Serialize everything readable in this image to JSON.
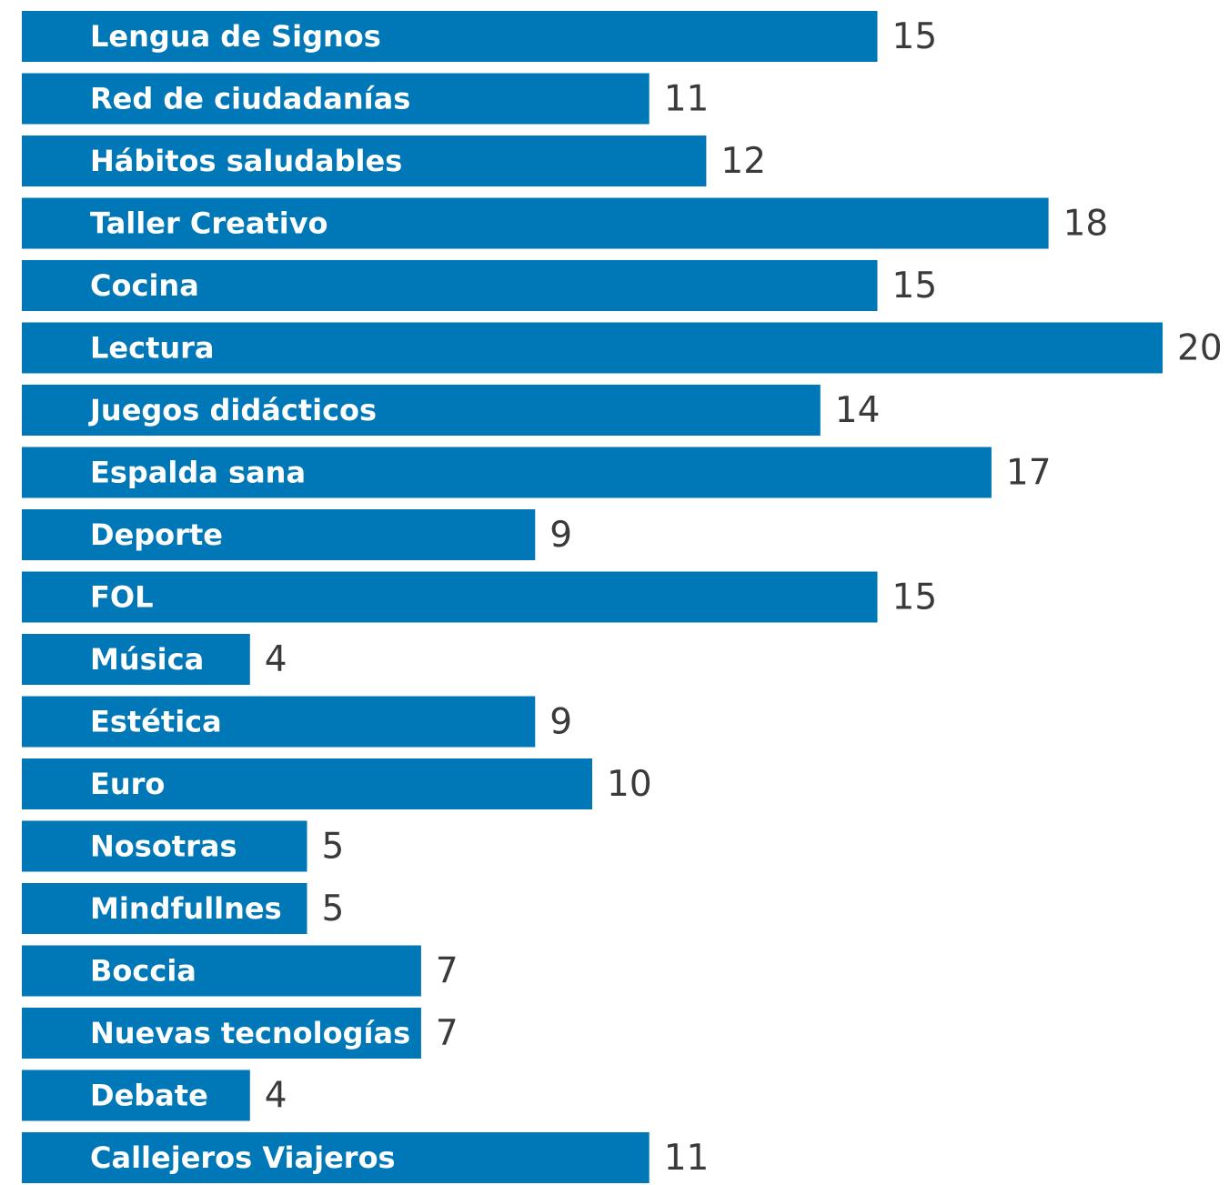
{
  "colors": {
    "bar": "#0077b6",
    "bar_label": "#ffffff",
    "value_label": "#3a3a3a",
    "background": "#ffffff"
  },
  "chart_data": {
    "type": "bar",
    "orientation": "horizontal",
    "title": "",
    "xlabel": "",
    "ylabel": "",
    "xlim": [
      0,
      20
    ],
    "grid": false,
    "legend": "none",
    "categories": [
      "Lengua de Signos",
      "Red de ciudadanías",
      "Hábitos saludables",
      "Taller Creativo",
      "Cocina",
      "Lectura",
      "Juegos didácticos",
      "Espalda sana",
      "Deporte",
      "FOL",
      "Música",
      "Estética",
      "Euro",
      "Nosotras",
      "Mindfullnes",
      "Boccia",
      "Nuevas tecnologías",
      "Debate",
      "Callejeros Viajeros"
    ],
    "values": [
      15,
      11,
      12,
      18,
      15,
      20,
      14,
      17,
      9,
      15,
      4,
      9,
      10,
      5,
      5,
      7,
      7,
      4,
      11
    ],
    "value_labels": [
      "15",
      "11",
      "12",
      "18",
      "15",
      "20",
      "14",
      "17",
      "9",
      "15",
      "4",
      "9",
      "10",
      "5",
      "5",
      "7",
      "7",
      "4",
      "11"
    ]
  }
}
